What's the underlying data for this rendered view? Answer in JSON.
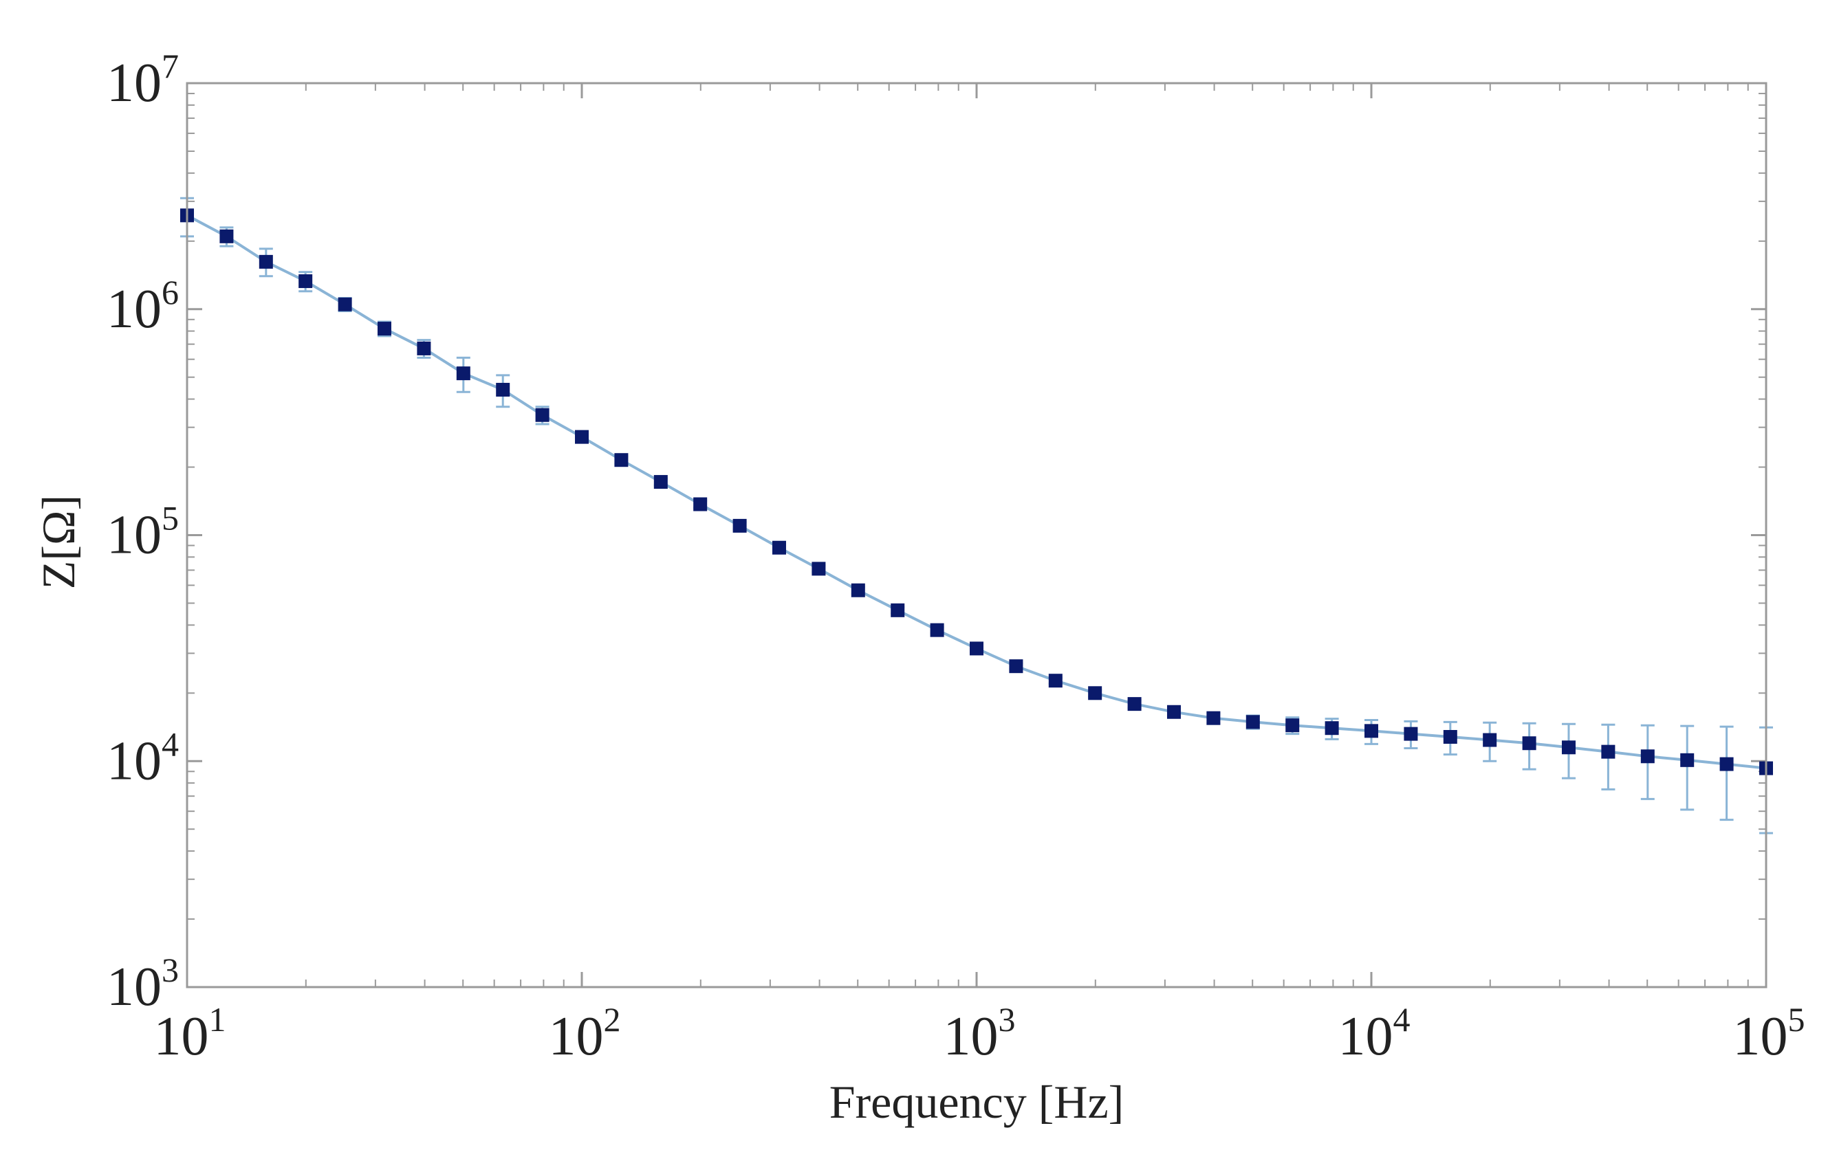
{
  "chart_data": {
    "type": "scatter",
    "xlabel": "Frequency [Hz]",
    "ylabel": "Z[Ω]",
    "xscale": "log",
    "yscale": "log",
    "xlim": [
      10,
      100000
    ],
    "ylim": [
      1000,
      10000000
    ],
    "x_ticks": [
      {
        "base": "10",
        "exp": "1"
      },
      {
        "base": "10",
        "exp": "2"
      },
      {
        "base": "10",
        "exp": "3"
      },
      {
        "base": "10",
        "exp": "4"
      },
      {
        "base": "10",
        "exp": "5"
      }
    ],
    "y_ticks": [
      {
        "base": "10",
        "exp": "3"
      },
      {
        "base": "10",
        "exp": "4"
      },
      {
        "base": "10",
        "exp": "5"
      },
      {
        "base": "10",
        "exp": "6"
      },
      {
        "base": "10",
        "exp": "7"
      }
    ],
    "marker_color": "#0a1a6b",
    "line_color": "#8ab4d6",
    "errorbar_color": "#8ab4d6",
    "frame_color": "#9a9a9a",
    "series": [
      {
        "name": "Z",
        "x": [
          10,
          12.59,
          15.85,
          19.95,
          25.12,
          31.62,
          39.81,
          50.12,
          63.1,
          79.43,
          100,
          125.9,
          158.5,
          199.5,
          251.2,
          316.2,
          398.1,
          501.2,
          631,
          794.3,
          1000,
          1259,
          1585,
          1995,
          2512,
          3162,
          3981,
          5012,
          6310,
          7943,
          10000,
          12590,
          15850,
          19950,
          25120,
          31620,
          39810,
          50120,
          63100,
          79430,
          100000
        ],
        "y": [
          2600000,
          2100000,
          1620000,
          1330000,
          1050000,
          820000,
          670000,
          520000,
          440000,
          340000,
          272000,
          215000,
          172000,
          137000,
          110000,
          88000,
          71000,
          57000,
          46500,
          38000,
          31500,
          26300,
          22700,
          20000,
          17900,
          16500,
          15500,
          14900,
          14400,
          14000,
          13600,
          13200,
          12800,
          12400,
          12000,
          11500,
          11000,
          10500,
          10100,
          9700,
          9300
        ],
        "err_low": [
          2100000,
          1900000,
          1400000,
          1200000,
          980000,
          760000,
          610000,
          430000,
          370000,
          310000,
          262000,
          207000,
          166000,
          132000,
          106000,
          85000,
          68500,
          55000,
          45000,
          36800,
          30500,
          25500,
          22000,
          19300,
          17200,
          15800,
          14700,
          13900,
          13200,
          12500,
          11900,
          11400,
          10700,
          10000,
          9200,
          8400,
          7500,
          6800,
          6100,
          5500,
          4800
        ],
        "err_high": [
          3100000,
          2300000,
          1850000,
          1460000,
          1120000,
          880000,
          730000,
          610000,
          510000,
          370000,
          282000,
          223000,
          178000,
          142000,
          114000,
          91000,
          73500,
          59000,
          48000,
          39200,
          32500,
          27100,
          23400,
          20700,
          18600,
          17200,
          16300,
          15900,
          15600,
          15400,
          15200,
          15000,
          14900,
          14800,
          14700,
          14600,
          14500,
          14400,
          14300,
          14200,
          14100
        ]
      }
    ]
  }
}
